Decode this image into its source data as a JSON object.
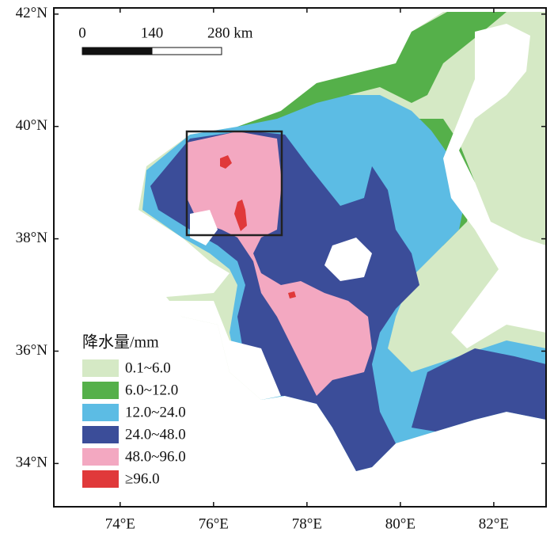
{
  "map": {
    "xlim": [
      72.58,
      83.12
    ],
    "ylim": [
      33.23,
      42.11
    ],
    "xticks": [
      {
        "value": 74,
        "label": "74°E"
      },
      {
        "value": 76,
        "label": "76°E"
      },
      {
        "value": 78,
        "label": "78°E"
      },
      {
        "value": 80,
        "label": "80°E"
      },
      {
        "value": 82,
        "label": "82°E"
      }
    ],
    "yticks": [
      {
        "value": 34,
        "label": "34°N"
      },
      {
        "value": 36,
        "label": "36°N"
      },
      {
        "value": 38,
        "label": "38°N"
      },
      {
        "value": 40,
        "label": "40°N"
      },
      {
        "value": 42,
        "label": "42°N"
      }
    ],
    "scale_bar": {
      "labels": [
        "0",
        "140",
        "280 km"
      ]
    },
    "legend": {
      "title": "降水量/mm",
      "items": [
        {
          "label": "0.1~6.0",
          "color": "#d5e9c5"
        },
        {
          "label": "6.0~12.0",
          "color": "#55b04a"
        },
        {
          "label": "12.0~24.0",
          "color": "#5cbce4"
        },
        {
          "label": "24.0~48.0",
          "color": "#3b4d99"
        },
        {
          "label": "48.0~96.0",
          "color": "#f3a8c1"
        },
        {
          "label": "≥96.0",
          "color": "#e0393a"
        }
      ]
    }
  }
}
